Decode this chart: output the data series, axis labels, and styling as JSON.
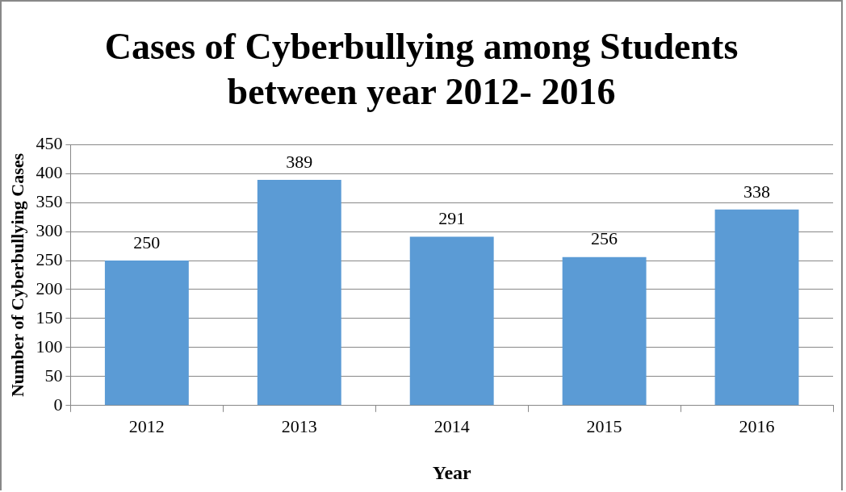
{
  "chart_data": {
    "type": "bar",
    "title": "Cases of Cyberbullying among Students between year 2012- 2016",
    "xlabel": "Year",
    "ylabel": "Number of Cyberbullying Cases",
    "categories": [
      "2012",
      "2013",
      "2014",
      "2015",
      "2016"
    ],
    "values": [
      250,
      389,
      291,
      256,
      338
    ],
    "color": "#5b9bd5",
    "ylim": [
      0,
      450
    ],
    "yticks": [
      0,
      50,
      100,
      150,
      200,
      250,
      300,
      350,
      400,
      450
    ],
    "grid": "y",
    "legend": false,
    "data_labels": true
  }
}
